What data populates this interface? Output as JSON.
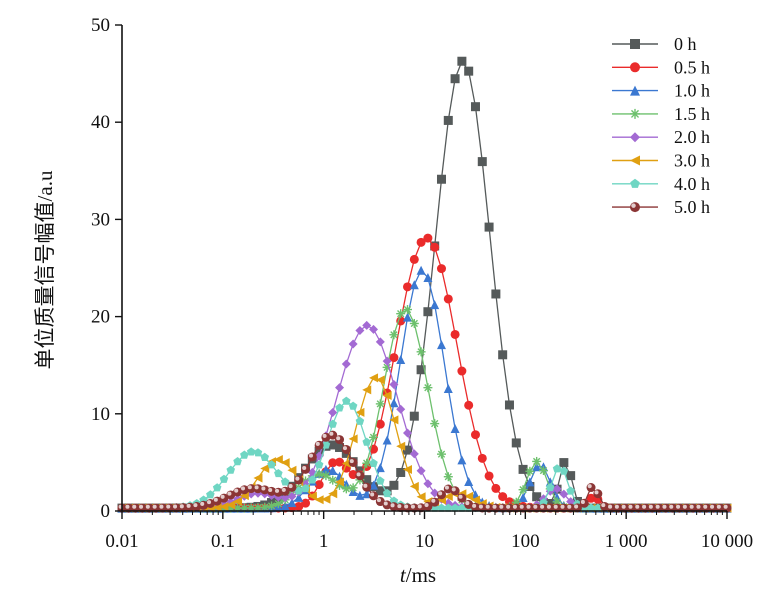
{
  "chart_data": {
    "type": "line",
    "title": "",
    "xlabel_italic": "t",
    "xlabel_rest": "/ms",
    "ylabel": "单位质量信号幅值/a.u",
    "xscale": "log",
    "xlim": [
      0.01,
      10000
    ],
    "ylim": [
      0,
      50
    ],
    "xticks": [
      0.01,
      0.1,
      1,
      10,
      100,
      1000,
      10000
    ],
    "xtick_labels": [
      "0.01",
      "0.1",
      "1",
      "10",
      "100",
      "1 000",
      "10 000"
    ],
    "yticks": [
      0,
      10,
      20,
      30,
      40,
      50
    ],
    "ytick_labels": [
      "0",
      "10",
      "20",
      "30",
      "40",
      "50"
    ],
    "grid": false,
    "legend_position": "top-right",
    "series": [
      {
        "name": "0 h",
        "color": "#555a5a",
        "marker": "square",
        "peaks": [
          {
            "t": 1.2,
            "h": 6.5,
            "w": 0.27
          },
          {
            "t": 24,
            "h": 46,
            "w": 0.27
          },
          {
            "t": 250,
            "h": 4.8,
            "w": 0.06
          }
        ],
        "baseline": 0.3
      },
      {
        "name": "0.5 h",
        "color": "#ea2b2b",
        "marker": "circle",
        "peaks": [
          {
            "t": 1.3,
            "h": 4.5,
            "w": 0.14
          },
          {
            "t": 10.5,
            "h": 27.8,
            "w": 0.3
          },
          {
            "t": 480,
            "h": 1.2,
            "w": 0.05
          }
        ],
        "baseline": 0.3
      },
      {
        "name": "1.0 h",
        "color": "#3b78d1",
        "marker": "triangle-up",
        "peaks": [
          {
            "t": 1.1,
            "h": 4.0,
            "w": 0.18
          },
          {
            "t": 9.5,
            "h": 24.5,
            "w": 0.22
          },
          {
            "t": 140,
            "h": 4.5,
            "w": 0.1
          }
        ],
        "baseline": 0.3
      },
      {
        "name": "1.5 h",
        "color": "#6dc06d",
        "marker": "asterisk",
        "peaks": [
          {
            "t": 0.9,
            "h": 3.5,
            "w": 0.2
          },
          {
            "t": 6.5,
            "h": 20.5,
            "w": 0.22
          },
          {
            "t": 130,
            "h": 4.8,
            "w": 0.1
          }
        ],
        "baseline": 0.3
      },
      {
        "name": "2.0 h",
        "color": "#a36ad3",
        "marker": "diamond",
        "peaks": [
          {
            "t": 0.22,
            "h": 1.5,
            "w": 0.2
          },
          {
            "t": 2.7,
            "h": 18.8,
            "w": 0.3
          },
          {
            "t": 200,
            "h": 2.0,
            "w": 0.1
          }
        ],
        "baseline": 0.3
      },
      {
        "name": "3.0 h",
        "color": "#e0a012",
        "marker": "triangle-left",
        "peaks": [
          {
            "t": 0.35,
            "h": 5.0,
            "w": 0.2
          },
          {
            "t": 3.3,
            "h": 13.5,
            "w": 0.2
          },
          {
            "t": 22,
            "h": 1.5,
            "w": 0.15
          }
        ],
        "baseline": 0.3
      },
      {
        "name": "4.0 h",
        "color": "#6fd6c3",
        "marker": "pentagon",
        "peaks": [
          {
            "t": 0.2,
            "h": 5.8,
            "w": 0.25
          },
          {
            "t": 1.7,
            "h": 11.0,
            "w": 0.2
          },
          {
            "t": 220,
            "h": 4.3,
            "w": 0.08
          }
        ],
        "baseline": 0.3
      },
      {
        "name": "5.0 h",
        "color": "#8b3535",
        "marker": "sphere",
        "peaks": [
          {
            "t": 0.2,
            "h": 2.0,
            "w": 0.25
          },
          {
            "t": 1.2,
            "h": 7.5,
            "w": 0.22
          },
          {
            "t": 18,
            "h": 2.0,
            "w": 0.1
          },
          {
            "t": 470,
            "h": 2.3,
            "w": 0.05
          }
        ],
        "baseline": 0.3
      }
    ]
  }
}
